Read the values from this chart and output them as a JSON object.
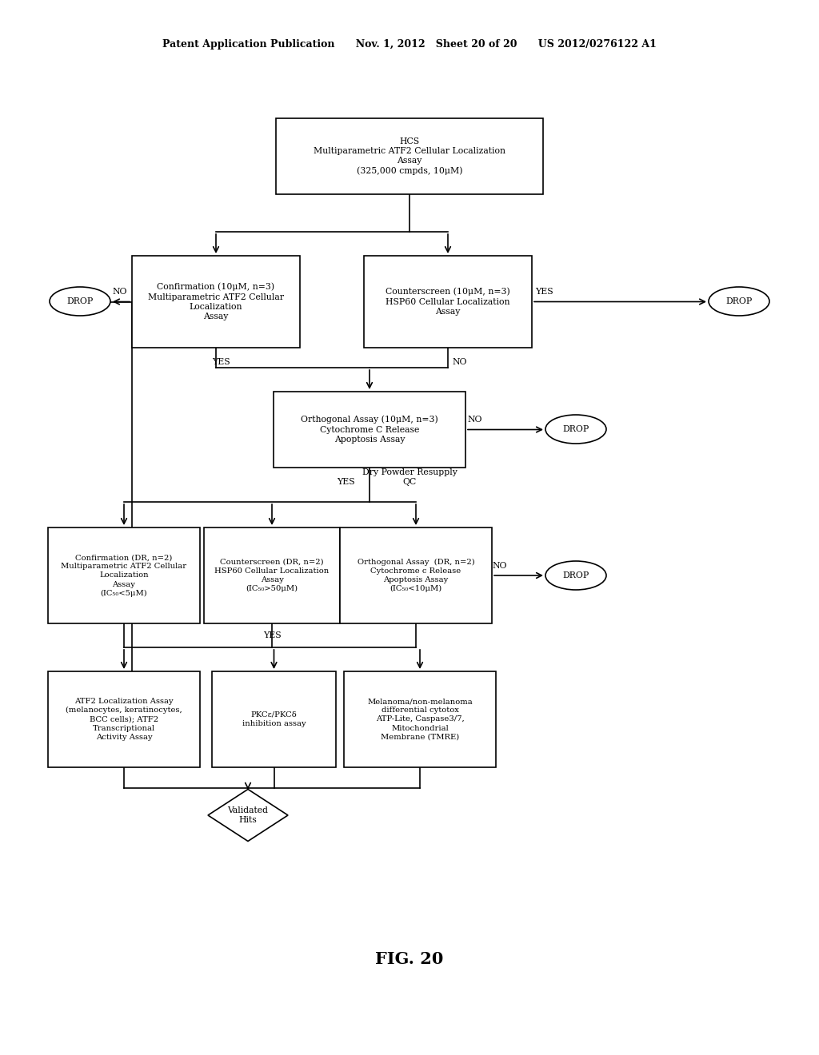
{
  "bg_color": "#ffffff",
  "header": "Patent Application Publication      Nov. 1, 2012   Sheet 20 of 20      US 2012/0276122 A1",
  "fig_label": "FIG. 20",
  "box1_text": "HCS\nMultiparametric ATF2 Cellular Localization\nAssay\n(325,000 cmpds, 10μM)",
  "box2_text": "Confirmation (10μM, n=3)\nMultiparametric ATF2 Cellular\nLocalization\nAssay",
  "box3_text": "Counterscreen (10μM, n=3)\nHSP60 Cellular Localization\nAssay",
  "box4_text": "Orthogonal Assay (10μM, n=3)\nCytochrome C Release\nApoptosis Assay",
  "box5_text": "Confirmation (DR, n=2)\nMultiparametric ATF2 Cellular\nLocalization\nAssay\n(IC₅₀<5μM)",
  "box6_text": "Counterscreen (DR, n=2)\nHSP60 Cellular Localization\nAssay\n(IC₅₀>50μM)",
  "box7_text": "Orthogonal Assay  (DR, n=2)\nCytochrome c Release\nApoptosis Assay\n(IC₅₀<10μM)",
  "box8_text": "ATF2 Localization Assay\n(melanocytes, keratinocytes,\nBCC cells); ATF2\nTranscriptional\nActivity Assay",
  "box9_text": "PKCε/PKCδ\ninhibition assay",
  "box10_text": "Melanoma/non-melanoma\ndifferential cytotox\nATP-Lite, Caspase3/7,\nMitochondrial\nMembrane (TMRE)",
  "validated_text": "Validated\nHits",
  "drop_text": "DROP"
}
